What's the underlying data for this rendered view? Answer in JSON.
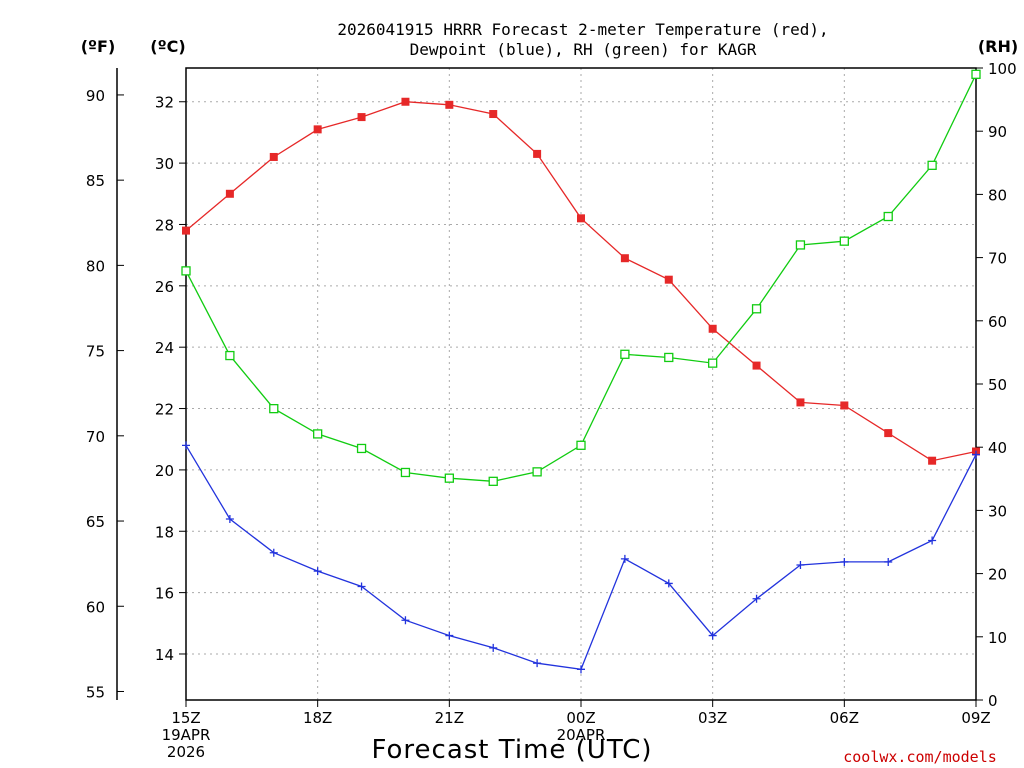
{
  "chart_data": {
    "type": "line",
    "title_line1": "2026041915 HRRR Forecast 2-meter Temperature (red),",
    "title_line2": "Dewpoint (blue), RH (green) for KAGR",
    "xlabel": "Forecast Time (UTC)",
    "credit": "coolwx.com/models",
    "units": {
      "fahrenheit": "(ºF)",
      "celsius": "(ºC)",
      "rh": "(RH)"
    },
    "x": [
      0,
      1,
      2,
      3,
      4,
      5,
      6,
      7,
      8,
      9,
      10,
      11,
      12,
      13,
      14,
      15,
      16,
      17,
      18
    ],
    "xlim": [
      0,
      18
    ],
    "x_ticks": [
      {
        "x": 0,
        "lines": [
          "15Z",
          "19APR",
          "2026"
        ]
      },
      {
        "x": 3,
        "lines": [
          "18Z"
        ]
      },
      {
        "x": 6,
        "lines": [
          "21Z"
        ]
      },
      {
        "x": 9,
        "lines": [
          "00Z",
          "20APR"
        ]
      },
      {
        "x": 12,
        "lines": [
          "03Z"
        ]
      },
      {
        "x": 15,
        "lines": [
          "06Z"
        ]
      },
      {
        "x": 18,
        "lines": [
          "09Z"
        ]
      }
    ],
    "ylim_celsius": [
      12.5,
      33.1
    ],
    "yticks_celsius": [
      "14",
      "16",
      "18",
      "20",
      "22",
      "24",
      "26",
      "28",
      "30",
      "32"
    ],
    "yticks_fahrenheit": [
      "55",
      "60",
      "65",
      "70",
      "75",
      "80",
      "85",
      "90"
    ],
    "ylim_rh": [
      0,
      100
    ],
    "yticks_rh": [
      "0",
      "10",
      "20",
      "30",
      "40",
      "50",
      "60",
      "70",
      "80",
      "90",
      "100"
    ],
    "colors": {
      "temperature": "#e62828",
      "dewpoint": "#2233dd",
      "rh": "#11cc11",
      "grid": "#aaaaaa"
    },
    "series": [
      {
        "name": "Temperature",
        "axis": "celsius",
        "marker": "filled-square",
        "values": [
          27.8,
          29.0,
          30.2,
          31.1,
          31.5,
          32.0,
          31.9,
          31.6,
          30.3,
          28.2,
          26.9,
          26.2,
          24.6,
          23.4,
          22.2,
          22.1,
          21.2,
          20.3,
          20.6
        ]
      },
      {
        "name": "Dewpoint",
        "axis": "celsius",
        "marker": "plus",
        "values": [
          20.8,
          18.4,
          17.3,
          16.7,
          16.2,
          15.1,
          14.6,
          14.2,
          13.7,
          13.5,
          17.1,
          16.3,
          14.6,
          15.8,
          16.9,
          17.0,
          17.0,
          17.7,
          20.5
        ]
      },
      {
        "name": "RH",
        "axis": "rh",
        "marker": "open-square",
        "values": [
          67.9,
          54.5,
          46.1,
          42.1,
          39.8,
          36.0,
          35.1,
          34.6,
          36.1,
          40.3,
          54.7,
          54.2,
          53.3,
          61.9,
          72.0,
          72.6,
          76.5,
          84.6,
          99.0
        ]
      }
    ]
  }
}
